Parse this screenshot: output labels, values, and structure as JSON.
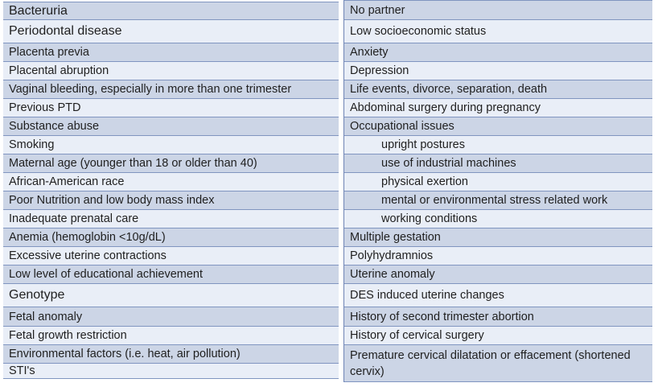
{
  "table": {
    "colors": {
      "row_blue": "#ccd5e6",
      "row_light": "#e9eef7",
      "border_blue": "#8095c0",
      "text": "#1f1f1f"
    },
    "left": {
      "rows": [
        {
          "label": "Bacteruria"
        },
        {
          "label": "Periodontal disease"
        },
        {
          "label": "Placenta previa"
        },
        {
          "label": "Placental abruption"
        },
        {
          "label": "Vaginal bleeding, especially in more than one trimester"
        },
        {
          "label": "Previous PTD"
        },
        {
          "label": "Substance abuse"
        },
        {
          "label": "Smoking"
        },
        {
          "label": "Maternal age (younger than 18 or older than 40)"
        },
        {
          "label": "African-American race"
        },
        {
          "label": "Poor Nutrition and low body mass index"
        },
        {
          "label": "Inadequate prenatal care"
        },
        {
          "label": "Anemia (hemoglobin <10g/dL)"
        },
        {
          "label": "Excessive uterine contractions"
        },
        {
          "label": "Low level of educational achievement"
        },
        {
          "label": "Genotype"
        },
        {
          "label": "Fetal anomaly"
        },
        {
          "label": "Fetal growth restriction"
        },
        {
          "label": "Environmental factors (i.e. heat, air pollution)"
        },
        {
          "label": "STI's"
        }
      ]
    },
    "right": {
      "rows": [
        {
          "label": "No partner"
        },
        {
          "label": "Low socioeconomic status"
        },
        {
          "label": "Anxiety"
        },
        {
          "label": "Depression"
        },
        {
          "label": "Life events, divorce, separation, death"
        },
        {
          "label": "Abdominal surgery during pregnancy"
        },
        {
          "label": "Occupational issues"
        },
        {
          "label": "upright postures"
        },
        {
          "label": "use of industrial machines"
        },
        {
          "label": "physical exertion"
        },
        {
          "label": "mental  or environmental stress related work"
        },
        {
          "label": "working conditions"
        },
        {
          "label": "Multiple gestation"
        },
        {
          "label": "Polyhydramnios"
        },
        {
          "label": "Uterine anomaly"
        },
        {
          "label": "DES induced uterine changes"
        },
        {
          "label": "History of second trimester abortion"
        },
        {
          "label": "History of cervical surgery"
        },
        {
          "label": "Premature cervical dilatation or effacement (shortened cervix)"
        }
      ]
    }
  }
}
